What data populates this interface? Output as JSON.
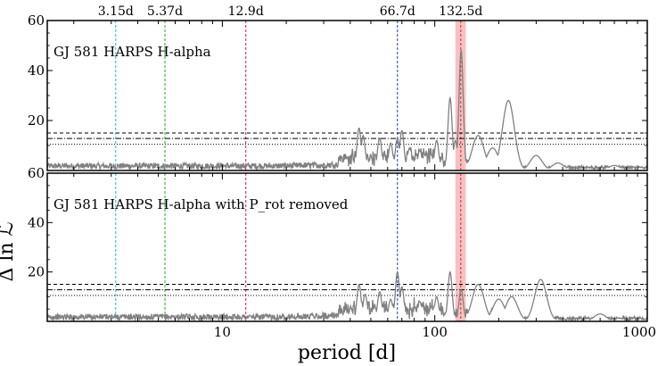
{
  "chart_data": {
    "type": "line",
    "xscale": "log",
    "xlim": [
      1.5,
      1000
    ],
    "xlabel": "period [d]",
    "ylabel": "Δ ln ℒ",
    "xticks": [
      10,
      100,
      1000
    ],
    "xtick_labels": [
      "10",
      "100",
      "1000"
    ],
    "yticks": [
      20,
      40,
      60
    ],
    "markers": [
      {
        "label": "3.15d",
        "period": 3.15,
        "color": "#17becf"
      },
      {
        "label": "5.37d",
        "period": 5.37,
        "color": "#2ca02c"
      },
      {
        "label": "12.9d",
        "period": 12.9,
        "color": "#c71585"
      },
      {
        "label": "66.7d",
        "period": 66.7,
        "color": "#1f3fb4"
      },
      {
        "label": "132.5d",
        "period": 132.5,
        "color": "#d62728"
      }
    ],
    "rotation_band": {
      "min": 125,
      "max": 140,
      "color": "#f4a6a6"
    },
    "thresholds": {
      "dotted": 10.5,
      "dashdot": 12.8,
      "dashed": 15.0
    },
    "panels": [
      {
        "label": "GJ 581 HARPS H-alpha",
        "ylim": [
          0,
          60
        ],
        "noise_level": 2,
        "peaks": [
          {
            "period": 44,
            "power": 17
          },
          {
            "period": 46,
            "power": 14
          },
          {
            "period": 55,
            "power": 13
          },
          {
            "period": 62,
            "power": 11
          },
          {
            "period": 66.7,
            "power": 13
          },
          {
            "period": 70,
            "power": 16
          },
          {
            "period": 76,
            "power": 9
          },
          {
            "period": 85,
            "power": 8
          },
          {
            "period": 102,
            "power": 12
          },
          {
            "period": 118,
            "power": 29
          },
          {
            "period": 125,
            "power": 12
          },
          {
            "period": 133,
            "power": 48
          },
          {
            "period": 160,
            "power": 14
          },
          {
            "period": 187,
            "power": 9
          },
          {
            "period": 222,
            "power": 28
          },
          {
            "period": 300,
            "power": 6
          },
          {
            "period": 380,
            "power": 3
          },
          {
            "period": 700,
            "power": 2
          }
        ]
      },
      {
        "label": "GJ 581 HARPS H-alpha with P_rot removed",
        "ylim": [
          0,
          60
        ],
        "noise_level": 2,
        "peaks": [
          {
            "period": 44,
            "power": 15
          },
          {
            "period": 47,
            "power": 11
          },
          {
            "period": 55,
            "power": 12
          },
          {
            "period": 62,
            "power": 9
          },
          {
            "period": 66.7,
            "power": 20
          },
          {
            "period": 70,
            "power": 14
          },
          {
            "period": 85,
            "power": 8
          },
          {
            "period": 102,
            "power": 10
          },
          {
            "period": 118,
            "power": 20
          },
          {
            "period": 133,
            "power": 13
          },
          {
            "period": 160,
            "power": 15
          },
          {
            "period": 200,
            "power": 9
          },
          {
            "period": 230,
            "power": 10
          },
          {
            "period": 315,
            "power": 17
          },
          {
            "period": 600,
            "power": 3
          }
        ]
      }
    ]
  }
}
